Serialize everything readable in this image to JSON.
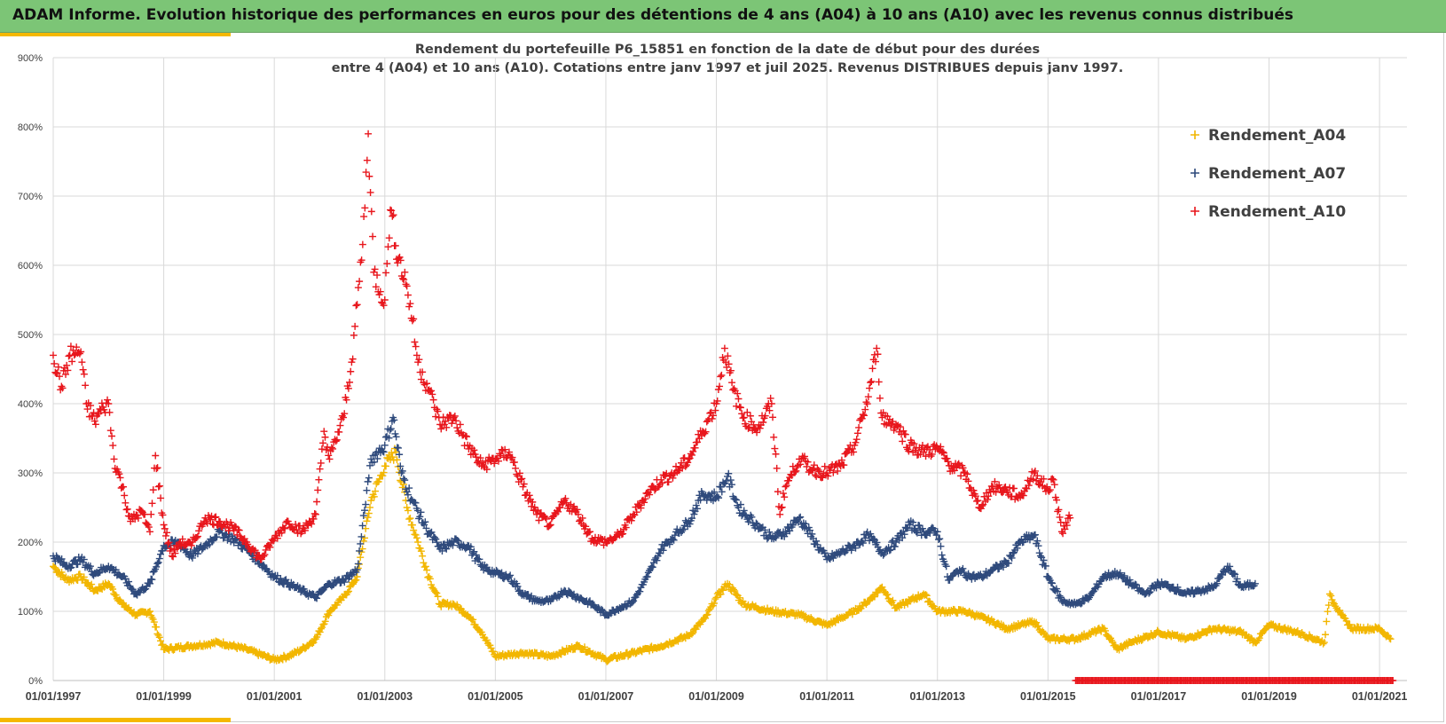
{
  "header": {
    "title": "ADAM Informe. Evolution historique des performances en euros pour des détentions de 4 ans (A04) à 10 ans (A10) avec les revenus connus distribués"
  },
  "colors": {
    "banner": "#7cc576",
    "accent": "#f5b800",
    "A04": "#f2b600",
    "A07": "#2f4a7c",
    "A10": "#e8161c"
  },
  "chart_data": {
    "type": "scatter",
    "title_line1": "Rendement du portefeuille P6_15851 en fonction de la date de début pour des durées",
    "title_line2": "entre 4 (A04) et 10 ans (A10). Cotations entre janv 1997 et juil 2025. Revenus DISTRIBUES depuis janv 1997.",
    "xlabel": "",
    "ylabel": "",
    "x_range": [
      "01/01/1997",
      "30/06/2021"
    ],
    "ylim": [
      0,
      900
    ],
    "y_ticks": [
      "0%",
      "100%",
      "200%",
      "300%",
      "400%",
      "500%",
      "600%",
      "700%",
      "800%",
      "900%"
    ],
    "x_ticks": [
      "01/01/1997",
      "01/01/1999",
      "01/01/2001",
      "01/01/2003",
      "01/01/2005",
      "01/01/2007",
      "01/01/2009",
      "01/01/2011",
      "01/01/2013",
      "01/01/2015",
      "01/01/2017",
      "01/01/2019",
      "01/01/2021"
    ],
    "grid": true,
    "legend_position": "top-right",
    "marker": "+",
    "series": [
      {
        "name": "Rendement_A04",
        "points": [
          [
            1997.0,
            165
          ],
          [
            1997.25,
            145
          ],
          [
            1997.5,
            150
          ],
          [
            1997.75,
            130
          ],
          [
            1998.0,
            140
          ],
          [
            1998.25,
            110
          ],
          [
            1998.5,
            95
          ],
          [
            1998.75,
            100
          ],
          [
            1999.0,
            45
          ],
          [
            1999.5,
            50
          ],
          [
            2000.0,
            55
          ],
          [
            2000.5,
            45
          ],
          [
            2001.0,
            30
          ],
          [
            2001.25,
            35
          ],
          [
            2001.5,
            45
          ],
          [
            2001.75,
            60
          ],
          [
            2002.0,
            100
          ],
          [
            2002.25,
            120
          ],
          [
            2002.5,
            150
          ],
          [
            2002.75,
            260
          ],
          [
            2003.0,
            310
          ],
          [
            2003.2,
            330
          ],
          [
            2003.4,
            250
          ],
          [
            2003.6,
            200
          ],
          [
            2003.8,
            150
          ],
          [
            2004.0,
            110
          ],
          [
            2004.25,
            110
          ],
          [
            2004.5,
            95
          ],
          [
            2004.75,
            70
          ],
          [
            2005.0,
            35
          ],
          [
            2005.5,
            40
          ],
          [
            2006.0,
            35
          ],
          [
            2006.5,
            50
          ],
          [
            2007.0,
            30
          ],
          [
            2007.5,
            40
          ],
          [
            2008.0,
            50
          ],
          [
            2008.5,
            65
          ],
          [
            2008.8,
            90
          ],
          [
            2009.0,
            120
          ],
          [
            2009.2,
            140
          ],
          [
            2009.5,
            110
          ],
          [
            2010.0,
            100
          ],
          [
            2010.5,
            95
          ],
          [
            2011.0,
            80
          ],
          [
            2011.5,
            100
          ],
          [
            2011.75,
            115
          ],
          [
            2012.0,
            135
          ],
          [
            2012.25,
            105
          ],
          [
            2012.5,
            115
          ],
          [
            2012.75,
            125
          ],
          [
            2013.0,
            100
          ],
          [
            2013.5,
            100
          ],
          [
            2014.0,
            85
          ],
          [
            2014.25,
            75
          ],
          [
            2014.5,
            80
          ],
          [
            2014.75,
            85
          ],
          [
            2015.0,
            60
          ],
          [
            2015.5,
            60
          ],
          [
            2016.0,
            75
          ],
          [
            2016.25,
            45
          ],
          [
            2016.5,
            55
          ],
          [
            2017.0,
            70
          ],
          [
            2017.5,
            60
          ],
          [
            2018.0,
            75
          ],
          [
            2018.5,
            70
          ],
          [
            2018.75,
            55
          ],
          [
            2019.0,
            80
          ],
          [
            2019.5,
            70
          ],
          [
            2020.0,
            55
          ],
          [
            2020.1,
            125
          ],
          [
            2020.3,
            95
          ],
          [
            2020.5,
            75
          ],
          [
            2021.0,
            75
          ],
          [
            2021.2,
            60
          ]
        ]
      },
      {
        "name": "Rendement_A07",
        "points": [
          [
            1997.0,
            180
          ],
          [
            1997.25,
            165
          ],
          [
            1997.5,
            175
          ],
          [
            1997.75,
            155
          ],
          [
            1998.0,
            165
          ],
          [
            1998.25,
            150
          ],
          [
            1998.5,
            125
          ],
          [
            1998.75,
            140
          ],
          [
            1999.0,
            195
          ],
          [
            1999.25,
            200
          ],
          [
            1999.5,
            180
          ],
          [
            1999.75,
            195
          ],
          [
            2000.0,
            215
          ],
          [
            2000.25,
            205
          ],
          [
            2000.5,
            190
          ],
          [
            2000.75,
            170
          ],
          [
            2001.0,
            150
          ],
          [
            2001.25,
            140
          ],
          [
            2001.5,
            130
          ],
          [
            2001.75,
            120
          ],
          [
            2002.0,
            140
          ],
          [
            2002.25,
            145
          ],
          [
            2002.5,
            160
          ],
          [
            2002.75,
            320
          ],
          [
            2003.0,
            340
          ],
          [
            2003.15,
            380
          ],
          [
            2003.3,
            300
          ],
          [
            2003.5,
            260
          ],
          [
            2003.75,
            220
          ],
          [
            2004.0,
            190
          ],
          [
            2004.25,
            200
          ],
          [
            2004.5,
            195
          ],
          [
            2004.75,
            165
          ],
          [
            2005.0,
            155
          ],
          [
            2005.25,
            150
          ],
          [
            2005.5,
            125
          ],
          [
            2005.75,
            115
          ],
          [
            2006.0,
            115
          ],
          [
            2006.25,
            130
          ],
          [
            2006.5,
            120
          ],
          [
            2006.75,
            110
          ],
          [
            2007.0,
            95
          ],
          [
            2007.25,
            105
          ],
          [
            2007.5,
            115
          ],
          [
            2007.75,
            150
          ],
          [
            2008.0,
            190
          ],
          [
            2008.25,
            210
          ],
          [
            2008.5,
            230
          ],
          [
            2008.75,
            270
          ],
          [
            2009.0,
            265
          ],
          [
            2009.2,
            295
          ],
          [
            2009.4,
            250
          ],
          [
            2009.6,
            235
          ],
          [
            2009.8,
            220
          ],
          [
            2010.0,
            205
          ],
          [
            2010.25,
            215
          ],
          [
            2010.5,
            235
          ],
          [
            2010.75,
            205
          ],
          [
            2011.0,
            175
          ],
          [
            2011.25,
            185
          ],
          [
            2011.5,
            195
          ],
          [
            2011.75,
            210
          ],
          [
            2012.0,
            185
          ],
          [
            2012.25,
            200
          ],
          [
            2012.5,
            225
          ],
          [
            2012.75,
            215
          ],
          [
            2013.0,
            215
          ],
          [
            2013.2,
            145
          ],
          [
            2013.4,
            160
          ],
          [
            2013.6,
            150
          ],
          [
            2013.8,
            150
          ],
          [
            2014.0,
            160
          ],
          [
            2014.25,
            170
          ],
          [
            2014.5,
            200
          ],
          [
            2014.75,
            210
          ],
          [
            2015.0,
            150
          ],
          [
            2015.25,
            115
          ],
          [
            2015.5,
            110
          ],
          [
            2015.75,
            120
          ],
          [
            2016.0,
            150
          ],
          [
            2016.25,
            155
          ],
          [
            2016.5,
            140
          ],
          [
            2016.75,
            125
          ],
          [
            2017.0,
            140
          ],
          [
            2017.25,
            135
          ],
          [
            2017.5,
            125
          ],
          [
            2017.75,
            130
          ],
          [
            2018.0,
            135
          ],
          [
            2018.25,
            165
          ],
          [
            2018.5,
            135
          ],
          [
            2018.75,
            140
          ]
        ]
      },
      {
        "name": "Rendement_A10",
        "points": [
          [
            1997.0,
            470
          ],
          [
            1997.15,
            425
          ],
          [
            1997.3,
            470
          ],
          [
            1997.5,
            475
          ],
          [
            1997.6,
            400
          ],
          [
            1997.75,
            375
          ],
          [
            1997.9,
            395
          ],
          [
            1998.0,
            400
          ],
          [
            1998.1,
            320
          ],
          [
            1998.25,
            280
          ],
          [
            1998.4,
            230
          ],
          [
            1998.6,
            245
          ],
          [
            1998.75,
            215
          ],
          [
            1998.85,
            325
          ],
          [
            1999.0,
            225
          ],
          [
            1999.15,
            180
          ],
          [
            1999.3,
            200
          ],
          [
            1999.5,
            195
          ],
          [
            1999.75,
            235
          ],
          [
            2000.0,
            230
          ],
          [
            2000.25,
            220
          ],
          [
            2000.5,
            200
          ],
          [
            2000.75,
            175
          ],
          [
            2001.0,
            205
          ],
          [
            2001.25,
            230
          ],
          [
            2001.5,
            215
          ],
          [
            2001.75,
            240
          ],
          [
            2001.9,
            360
          ],
          [
            2002.0,
            320
          ],
          [
            2002.25,
            380
          ],
          [
            2002.4,
            460
          ],
          [
            2002.6,
            630
          ],
          [
            2002.7,
            790
          ],
          [
            2002.8,
            590
          ],
          [
            2003.0,
            550
          ],
          [
            2003.1,
            680
          ],
          [
            2003.25,
            610
          ],
          [
            2003.4,
            570
          ],
          [
            2003.5,
            520
          ],
          [
            2003.6,
            460
          ],
          [
            2003.8,
            420
          ],
          [
            2004.0,
            370
          ],
          [
            2004.25,
            380
          ],
          [
            2004.5,
            340
          ],
          [
            2004.75,
            310
          ],
          [
            2005.0,
            320
          ],
          [
            2005.25,
            330
          ],
          [
            2005.5,
            280
          ],
          [
            2005.75,
            240
          ],
          [
            2006.0,
            225
          ],
          [
            2006.25,
            260
          ],
          [
            2006.5,
            240
          ],
          [
            2006.75,
            205
          ],
          [
            2007.0,
            200
          ],
          [
            2007.25,
            210
          ],
          [
            2007.5,
            240
          ],
          [
            2007.75,
            270
          ],
          [
            2008.0,
            290
          ],
          [
            2008.25,
            300
          ],
          [
            2008.5,
            320
          ],
          [
            2008.75,
            360
          ],
          [
            2009.0,
            400
          ],
          [
            2009.15,
            480
          ],
          [
            2009.3,
            420
          ],
          [
            2009.5,
            380
          ],
          [
            2009.75,
            365
          ],
          [
            2010.0,
            400
          ],
          [
            2010.15,
            240
          ],
          [
            2010.25,
            280
          ],
          [
            2010.5,
            320
          ],
          [
            2010.75,
            305
          ],
          [
            2011.0,
            300
          ],
          [
            2011.25,
            310
          ],
          [
            2011.5,
            340
          ],
          [
            2011.75,
            410
          ],
          [
            2011.9,
            480
          ],
          [
            2012.0,
            380
          ],
          [
            2012.25,
            370
          ],
          [
            2012.5,
            340
          ],
          [
            2012.75,
            330
          ],
          [
            2013.0,
            335
          ],
          [
            2013.25,
            310
          ],
          [
            2013.5,
            300
          ],
          [
            2013.75,
            250
          ],
          [
            2014.0,
            280
          ],
          [
            2014.25,
            275
          ],
          [
            2014.5,
            265
          ],
          [
            2014.75,
            300
          ],
          [
            2015.0,
            275
          ],
          [
            2015.1,
            290
          ],
          [
            2015.25,
            215
          ],
          [
            2015.4,
            235
          ]
        ]
      },
      {
        "name": "Rendement_A10_zero_band",
        "points_range": [
          2015.5,
          2021.25
        ],
        "value": 0
      }
    ],
    "legend": [
      "Rendement_A04",
      "Rendement_A07",
      "Rendement_A10"
    ]
  }
}
